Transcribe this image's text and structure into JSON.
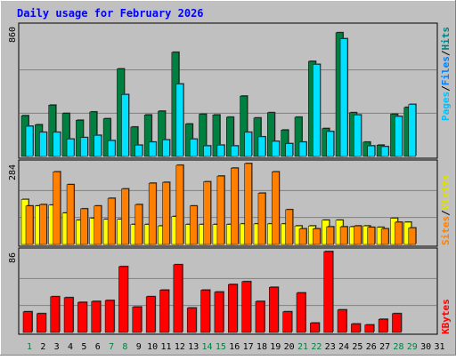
{
  "chart_data": {
    "type": "bar",
    "title": "Daily usage for February 2026",
    "days": [
      1,
      2,
      3,
      4,
      5,
      6,
      7,
      8,
      9,
      10,
      11,
      12,
      13,
      14,
      15,
      16,
      17,
      18,
      19,
      20,
      21,
      22,
      23,
      24,
      25,
      26,
      27,
      28,
      29,
      30,
      31
    ],
    "weekend_days": [
      1,
      7,
      8,
      14,
      15,
      21,
      22,
      28,
      29
    ],
    "legend_separator": "/",
    "panels": {
      "hits_files": {
        "max_label": "860",
        "ymax": 860,
        "legend": [
          "Pages",
          "Files",
          "Hits"
        ],
        "colors": {
          "hits": "#008040",
          "files": "#00e0ff",
          "pages": "#00c0ff"
        },
        "hits": [
          270,
          210,
          340,
          285,
          240,
          295,
          250,
          580,
          195,
          275,
          300,
          690,
          215,
          280,
          275,
          260,
          400,
          255,
          290,
          175,
          260,
          630,
          185,
          820,
          290,
          95,
          75,
          280,
          325
        ],
        "files": [
          200,
          160,
          160,
          115,
          125,
          140,
          105,
          410,
          75,
          95,
          110,
          480,
          115,
          70,
          75,
          70,
          160,
          130,
          100,
          85,
          95,
          610,
          165,
          780,
          275,
          70,
          65,
          265,
          345
        ],
        "pages": [
          200,
          160,
          160,
          115,
          125,
          140,
          105,
          410,
          75,
          95,
          110,
          480,
          115,
          70,
          75,
          70,
          160,
          130,
          100,
          85,
          95,
          610,
          165,
          780,
          275,
          70,
          65,
          265,
          345
        ]
      },
      "visits_sites": {
        "max_label": "284",
        "ymax": 284,
        "legend": [
          "Sites",
          "Visits"
        ],
        "colors": {
          "visits": "#ffff00",
          "sites": "#ff8000"
        },
        "visits": [
          158,
          135,
          138,
          110,
          85,
          92,
          88,
          88,
          70,
          70,
          65,
          98,
          70,
          70,
          70,
          70,
          72,
          72,
          72,
          72,
          65,
          65,
          85,
          85,
          62,
          65,
          60,
          92,
          78
        ],
        "sites": [
          135,
          140,
          255,
          210,
          125,
          135,
          162,
          195,
          140,
          215,
          218,
          278,
          135,
          220,
          240,
          268,
          284,
          180,
          255,
          122,
          55,
          55,
          62,
          62,
          65,
          60,
          55,
          78,
          58
        ]
      },
      "kbytes": {
        "max_label": "86",
        "ymax": 86,
        "legend": [
          "KBytes"
        ],
        "colors": {
          "kbytes": "#ff0000"
        },
        "values": [
          22,
          20,
          38,
          37,
          32,
          33,
          34,
          70,
          27,
          38,
          45,
          72,
          26,
          45,
          43,
          51,
          54,
          33,
          48,
          22,
          42,
          10,
          86,
          24,
          9,
          8,
          14,
          20,
          0
        ]
      }
    }
  }
}
